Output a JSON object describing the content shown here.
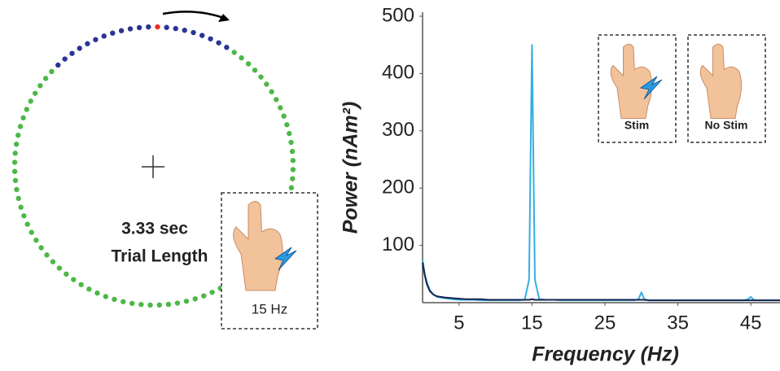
{
  "diagram": {
    "trial_length": "3.33 sec",
    "trial_label": "Trial Length",
    "stim_frequency": "15 Hz"
  },
  "chart_data": {
    "type": "line",
    "x_label": "Frequency (Hz)",
    "y_label": "Power (nAm²)",
    "x": [
      0,
      0.3,
      0.6,
      1,
      1.5,
      2,
      3,
      4,
      5,
      6,
      7,
      8,
      9,
      10,
      11,
      12,
      13,
      14,
      14.6,
      15,
      15.4,
      16,
      17,
      18,
      19,
      20,
      21,
      22,
      23,
      24,
      25,
      26,
      27,
      28,
      29,
      29.6,
      30,
      30.4,
      31,
      32,
      33,
      34,
      35,
      36,
      37,
      38,
      39,
      40,
      41,
      42,
      43,
      44,
      44.6,
      45,
      45.4,
      46,
      47,
      48,
      49
    ],
    "series": [
      {
        "name": "Stim",
        "color": "#35aee0",
        "values": [
          75,
          50,
          35,
          22,
          14,
          10,
          8,
          6,
          5,
          5,
          5,
          4,
          4,
          4,
          4,
          4,
          4,
          5,
          40,
          450,
          40,
          6,
          5,
          5,
          4,
          4,
          4,
          4,
          4,
          4,
          4,
          4,
          4,
          4,
          4,
          6,
          18,
          6,
          4,
          4,
          4,
          4,
          4,
          4,
          4,
          4,
          4,
          4,
          4,
          4,
          4,
          4,
          6,
          10,
          5,
          4,
          4,
          4,
          4
        ]
      },
      {
        "name": "No Stim",
        "color": "#16244f",
        "values": [
          70,
          48,
          32,
          20,
          14,
          11,
          9,
          8,
          7,
          6,
          6,
          6,
          5,
          5,
          5,
          5,
          5,
          5,
          5,
          6,
          5,
          5,
          5,
          5,
          5,
          5,
          5,
          5,
          5,
          5,
          5,
          5,
          5,
          5,
          5,
          5,
          5,
          5,
          4,
          4,
          4,
          4,
          4,
          4,
          4,
          4,
          4,
          4,
          4,
          4,
          4,
          4,
          4,
          4,
          4,
          4,
          4,
          4,
          4
        ]
      }
    ],
    "xlim": [
      0,
      49
    ],
    "xticks": [
      5,
      15,
      25,
      35,
      45
    ],
    "ylim": [
      0,
      500
    ],
    "yticks": [
      100,
      200,
      300,
      400,
      500
    ]
  }
}
